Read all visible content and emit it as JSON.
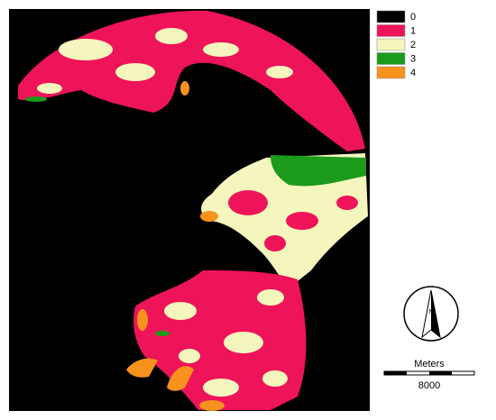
{
  "legend": {
    "items": [
      {
        "label": "0",
        "color": "#000000"
      },
      {
        "label": "1",
        "color": "#ee1459"
      },
      {
        "label": "2",
        "color": "#f4f6bd"
      },
      {
        "label": "3",
        "color": "#1c9a1c"
      },
      {
        "label": "4",
        "color": "#f7921e"
      }
    ]
  },
  "north_arrow": {
    "label": "N"
  },
  "scale_bar": {
    "unit": "Meters",
    "label": "8000"
  }
}
